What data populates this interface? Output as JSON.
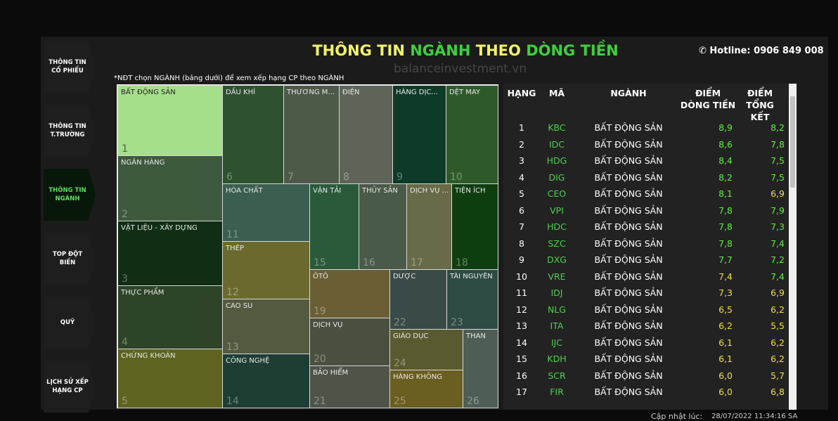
{
  "watermark": "balanceinvestment.vn",
  "nav": [
    {
      "lines": [
        "THÔNG TIN",
        "CỔ PHIẾU"
      ]
    },
    {
      "lines": [
        "THÔNG TIN",
        "T.TRƯỜNG"
      ]
    },
    {
      "lines": [
        "THÔNG TIN",
        "NGÀNH"
      ]
    },
    {
      "lines": [
        "TOP ĐỘT",
        "BIẾN"
      ]
    },
    {
      "lines": [
        "QUỸ"
      ]
    },
    {
      "lines": [
        "LỊCH SỬ XẾP",
        "HẠNG CP"
      ]
    }
  ],
  "header": {
    "title_parts": [
      "THÔNG TIN ",
      "NGÀNH ",
      "THEO ",
      "DÒNG TIỀN"
    ],
    "hotline": "Hotline: 0906 849 008"
  },
  "note": "*NĐT chọn NGÀNH (bảng dưới) để xem xếp hạng CP theo NGÀNH",
  "treemap": [
    {
      "label": "BẤT ĐỘNG SẢN",
      "rank": "1"
    },
    {
      "label": "NGÂN HÀNG",
      "rank": "2"
    },
    {
      "label": "VẬT LIỆU - XÂY DỰNG",
      "rank": "3"
    },
    {
      "label": "THỰC PHẨM",
      "rank": "4"
    },
    {
      "label": "CHỨNG KHOÁN",
      "rank": "5"
    },
    {
      "label": "DẦU KHÍ",
      "rank": "6"
    },
    {
      "label": "THƯƠNG M...",
      "rank": "7"
    },
    {
      "label": "ĐIỆN",
      "rank": "8"
    },
    {
      "label": "HÀNG DỊC...",
      "rank": "9"
    },
    {
      "label": "DỆT MAY",
      "rank": "10"
    },
    {
      "label": "HÓA CHẤT",
      "rank": "11"
    },
    {
      "label": "THÉP",
      "rank": "12"
    },
    {
      "label": "CAO SU",
      "rank": "13"
    },
    {
      "label": "CÔNG NGHỆ",
      "rank": "14"
    },
    {
      "label": "VẬN TẢI",
      "rank": "15"
    },
    {
      "label": "THỦY SẢN",
      "rank": "16"
    },
    {
      "label": "DỊCH VỤ ...",
      "rank": "17"
    },
    {
      "label": "TIỆN ÍCH",
      "rank": "18"
    },
    {
      "label": "ÔTÔ",
      "rank": "19"
    },
    {
      "label": "DỊCH VỤ",
      "rank": "20"
    },
    {
      "label": "BẢO HIỂM",
      "rank": "21"
    },
    {
      "label": "DƯỢC",
      "rank": "22"
    },
    {
      "label": "TÀI NGUYÊN",
      "rank": "23"
    },
    {
      "label": "GIÁO DỤC",
      "rank": "24"
    },
    {
      "label": "HÀNG KHÔNG",
      "rank": "25"
    },
    {
      "label": "THAN",
      "rank": "26"
    }
  ],
  "table": {
    "headers": [
      [
        "HẠNG"
      ],
      [
        "MÃ"
      ],
      [
        "NGÀNH"
      ],
      [
        "ĐIỂM",
        "DÒNG TIỀN"
      ],
      [
        "ĐIỂM",
        "TỔNG KẾT"
      ]
    ],
    "rows": [
      [
        "1",
        "KBC",
        "BẤT ĐỘNG SẢN",
        "8,9",
        "8,2"
      ],
      [
        "2",
        "IDC",
        "BẤT ĐỘNG SẢN",
        "8,6",
        "7,8"
      ],
      [
        "3",
        "HDG",
        "BẤT ĐỘNG SẢN",
        "8,4",
        "7,5"
      ],
      [
        "4",
        "DIG",
        "BẤT ĐỘNG SẢN",
        "8,2",
        "7,5"
      ],
      [
        "5",
        "CEO",
        "BẤT ĐỘNG SẢN",
        "8,1",
        "6,9"
      ],
      [
        "6",
        "VPI",
        "BẤT ĐỘNG SẢN",
        "7,8",
        "7,9"
      ],
      [
        "7",
        "HDC",
        "BẤT ĐỘNG SẢN",
        "7,8",
        "7,3"
      ],
      [
        "8",
        "SZC",
        "BẤT ĐỘNG SẢN",
        "7,8",
        "7,4"
      ],
      [
        "9",
        "DXG",
        "BẤT ĐỘNG SẢN",
        "7,7",
        "7,2"
      ],
      [
        "10",
        "VRE",
        "BẤT ĐỘNG SẢN",
        "7,4",
        "7,4"
      ],
      [
        "11",
        "IDJ",
        "BẤT ĐỘNG SẢN",
        "7,3",
        "6,9"
      ],
      [
        "12",
        "NLG",
        "BẤT ĐỘNG SẢN",
        "6,5",
        "6,2"
      ],
      [
        "13",
        "ITA",
        "BẤT ĐỘNG SẢN",
        "6,2",
        "5,5"
      ],
      [
        "14",
        "IJC",
        "BẤT ĐỘNG SẢN",
        "6,1",
        "6,2"
      ],
      [
        "15",
        "KDH",
        "BẤT ĐỘNG SẢN",
        "6,1",
        "6,2"
      ],
      [
        "16",
        "SCR",
        "BẤT ĐỘNG SẢN",
        "6,0",
        "5,7"
      ],
      [
        "17",
        "FIR",
        "BẤT ĐỘNG SẢN",
        "6,0",
        "6,8"
      ]
    ]
  },
  "footer": {
    "label": "Cập nhật lúc:",
    "time": "28/07/2022 11:34:16 SA"
  }
}
